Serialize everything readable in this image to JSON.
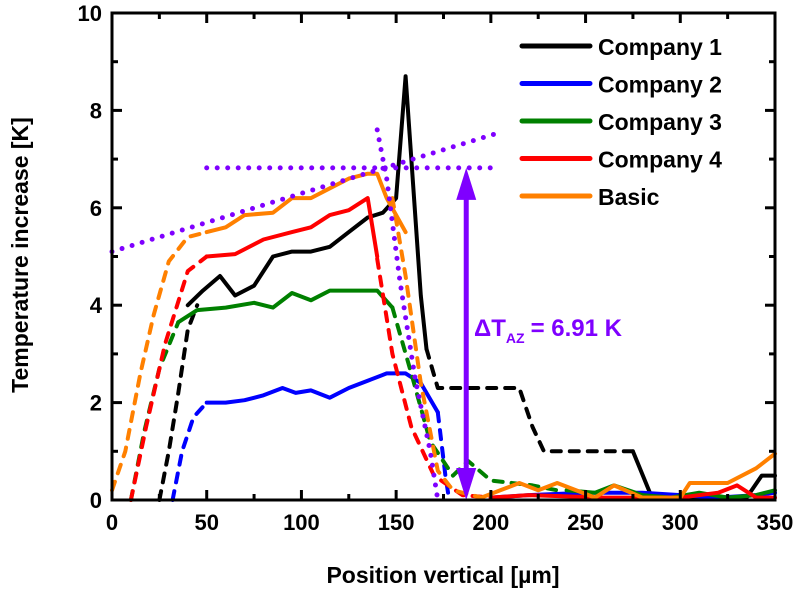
{
  "chart_data": {
    "type": "line",
    "title": "",
    "xlabel": "Position vertical [µm]",
    "ylabel": "Temperature increase [K]",
    "xlim": [
      0,
      350
    ],
    "ylim": [
      0,
      10
    ],
    "xticks": [
      0,
      50,
      100,
      150,
      200,
      250,
      300,
      350
    ],
    "yticks": [
      0,
      2,
      4,
      6,
      8,
      10
    ],
    "grid": false,
    "legend": {
      "position": "top-right",
      "entries": [
        "Company 1",
        "Company 2",
        "Company 3",
        "Company 4",
        "Basic"
      ]
    },
    "series": [
      {
        "name": "Company 1",
        "color": "#000000",
        "solid": [
          [
            40,
            4.0
          ],
          [
            48,
            4.3
          ],
          [
            57,
            4.6
          ],
          [
            65,
            4.2
          ],
          [
            75,
            4.4
          ],
          [
            85,
            5.0
          ],
          [
            95,
            5.1
          ],
          [
            105,
            5.1
          ],
          [
            115,
            5.2
          ],
          [
            125,
            5.5
          ],
          [
            135,
            5.8
          ],
          [
            143,
            5.9
          ],
          [
            150,
            6.2
          ],
          [
            155,
            8.7
          ],
          [
            163,
            4.2
          ],
          [
            166,
            3.1
          ]
        ],
        "dashed": [
          [
            25,
            0.0
          ],
          [
            30,
            1.0
          ],
          [
            35,
            2.2
          ],
          [
            40,
            3.5
          ],
          [
            45,
            4.0
          ]
        ],
        "dashed2": [
          [
            166,
            3.1
          ],
          [
            172,
            2.3
          ],
          [
            215,
            2.3
          ],
          [
            222,
            1.5
          ],
          [
            228,
            1.0
          ],
          [
            275,
            1.0
          ]
        ],
        "solid2": [
          [
            275,
            1.0
          ],
          [
            285,
            0.05
          ],
          [
            335,
            0.05
          ],
          [
            343,
            0.5
          ],
          [
            350,
            0.5
          ]
        ]
      },
      {
        "name": "Company 2",
        "color": "#0000ff",
        "solid": [
          [
            50,
            2.0
          ],
          [
            60,
            2.0
          ],
          [
            70,
            2.05
          ],
          [
            80,
            2.15
          ],
          [
            90,
            2.3
          ],
          [
            97,
            2.2
          ],
          [
            105,
            2.25
          ],
          [
            115,
            2.1
          ],
          [
            125,
            2.3
          ],
          [
            135,
            2.45
          ],
          [
            145,
            2.6
          ],
          [
            155,
            2.6
          ],
          [
            163,
            2.4
          ],
          [
            172,
            1.8
          ]
        ],
        "dashed": [
          [
            32,
            0.0
          ],
          [
            37,
            1.0
          ],
          [
            43,
            1.7
          ],
          [
            50,
            2.0
          ]
        ],
        "dashed2": [
          [
            172,
            1.8
          ],
          [
            176,
            0.5
          ],
          [
            178,
            0.0
          ]
        ],
        "solid2": [
          [
            200,
            0.05
          ],
          [
            220,
            0.1
          ],
          [
            250,
            0.15
          ],
          [
            280,
            0.15
          ],
          [
            300,
            0.1
          ],
          [
            320,
            0.05
          ],
          [
            340,
            0.1
          ],
          [
            350,
            0.15
          ]
        ]
      },
      {
        "name": "Company 3",
        "color": "#008000",
        "solid": [
          [
            35,
            3.65
          ],
          [
            45,
            3.9
          ],
          [
            60,
            3.95
          ],
          [
            75,
            4.05
          ],
          [
            85,
            3.95
          ],
          [
            95,
            4.25
          ],
          [
            105,
            4.1
          ],
          [
            115,
            4.3
          ],
          [
            130,
            4.3
          ],
          [
            140,
            4.3
          ],
          [
            148,
            3.95
          ]
        ],
        "dashed": [
          [
            10,
            0.0
          ],
          [
            17,
            1.4
          ],
          [
            25,
            2.7
          ],
          [
            35,
            3.65
          ]
        ],
        "dashed2": [
          [
            148,
            3.95
          ],
          [
            158,
            2.6
          ],
          [
            168,
            1.2
          ],
          [
            180,
            0.5
          ],
          [
            188,
            0.8
          ],
          [
            200,
            0.4
          ],
          [
            222,
            0.3
          ],
          [
            235,
            0.2
          ]
        ],
        "solid2": [
          [
            240,
            0.2
          ],
          [
            255,
            0.15
          ],
          [
            265,
            0.3
          ],
          [
            280,
            0.1
          ],
          [
            295,
            0.05
          ],
          [
            310,
            0.15
          ],
          [
            325,
            0.05
          ],
          [
            340,
            0.1
          ],
          [
            350,
            0.2
          ]
        ]
      },
      {
        "name": "Company 4",
        "color": "#ff0000",
        "solid": [
          [
            50,
            5.0
          ],
          [
            65,
            5.05
          ],
          [
            80,
            5.35
          ],
          [
            95,
            5.5
          ],
          [
            105,
            5.6
          ],
          [
            115,
            5.85
          ],
          [
            125,
            5.95
          ],
          [
            135,
            6.2
          ],
          [
            140,
            5.0
          ]
        ],
        "dashed": [
          [
            10,
            0.0
          ],
          [
            18,
            1.5
          ],
          [
            28,
            3.2
          ],
          [
            40,
            4.7
          ],
          [
            50,
            5.0
          ]
        ],
        "dashed2": [
          [
            140,
            4.95
          ],
          [
            148,
            3.0
          ],
          [
            158,
            1.5
          ],
          [
            170,
            0.5
          ],
          [
            185,
            0.1
          ],
          [
            200,
            0.05
          ]
        ],
        "solid2": [
          [
            200,
            0.05
          ],
          [
            220,
            0.1
          ],
          [
            260,
            0.05
          ],
          [
            300,
            0.05
          ],
          [
            320,
            0.15
          ],
          [
            330,
            0.3
          ],
          [
            340,
            0.05
          ],
          [
            350,
            0.05
          ]
        ]
      },
      {
        "name": "Basic",
        "color": "#ff8000",
        "solid": [
          [
            50,
            5.5
          ],
          [
            60,
            5.6
          ],
          [
            70,
            5.85
          ],
          [
            85,
            5.9
          ],
          [
            95,
            6.2
          ],
          [
            105,
            6.2
          ],
          [
            115,
            6.4
          ],
          [
            125,
            6.6
          ],
          [
            135,
            6.7
          ],
          [
            140,
            6.7
          ],
          [
            145,
            6.2
          ],
          [
            155,
            5.5
          ]
        ],
        "dashed": [
          [
            0,
            0.2
          ],
          [
            7,
            1.0
          ],
          [
            15,
            2.6
          ],
          [
            22,
            3.8
          ],
          [
            30,
            4.9
          ],
          [
            40,
            5.4
          ],
          [
            50,
            5.5
          ]
        ],
        "dashed2": [
          [
            148,
            6.2
          ],
          [
            155,
            4.6
          ],
          [
            163,
            2.4
          ],
          [
            172,
            0.6
          ],
          [
            180,
            0.2
          ],
          [
            195,
            0.05
          ]
        ],
        "solid2": [
          [
            195,
            0.05
          ],
          [
            205,
            0.2
          ],
          [
            215,
            0.35
          ],
          [
            225,
            0.2
          ],
          [
            235,
            0.35
          ],
          [
            245,
            0.2
          ],
          [
            255,
            0.05
          ],
          [
            265,
            0.3
          ],
          [
            280,
            0.05
          ],
          [
            300,
            0.05
          ],
          [
            305,
            0.35
          ],
          [
            325,
            0.35
          ],
          [
            340,
            0.65
          ],
          [
            350,
            0.95
          ]
        ]
      }
    ],
    "annotations": {
      "color": "#7f00ff",
      "delta_label": "ΔT",
      "delta_subscript": "AZ",
      "delta_value": "= 6.91 K",
      "delta_T": 6.91,
      "arrow_x": 187,
      "hline_y": 6.82,
      "hline_x": [
        50,
        205
      ],
      "slope_line": [
        [
          0,
          5.1
        ],
        [
          205,
          7.55
        ]
      ],
      "vline_dotted": [
        [
          140,
          7.6
        ],
        [
          145,
          6.6
        ],
        [
          152,
          4.5
        ],
        [
          160,
          2.5
        ],
        [
          168,
          1.0
        ],
        [
          172,
          0.0
        ]
      ]
    }
  }
}
